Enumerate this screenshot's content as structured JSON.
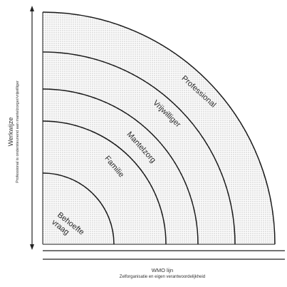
{
  "rings": [
    {
      "label_lines": [
        "Behoefte",
        "vraag"
      ]
    },
    {
      "label_lines": [
        "Familie"
      ]
    },
    {
      "label_lines": [
        "Mantelzorg"
      ]
    },
    {
      "label_lines": [
        "Vrijwilliger"
      ]
    },
    {
      "label_lines": [
        "Professional"
      ]
    }
  ],
  "y_axis": {
    "title": "Werkwijze",
    "subtitle": "Professional is ondersteunend aan mantelzorger/vrijwilliger"
  },
  "x_axis": {
    "title": "WMO lijn",
    "subtitle": "Zelforganisatie en eigen verantwoordelijkheid"
  },
  "colors": {
    "line": "#1a1a1a",
    "dot": "#8a8a8a",
    "fill": "#fbfbfb"
  }
}
